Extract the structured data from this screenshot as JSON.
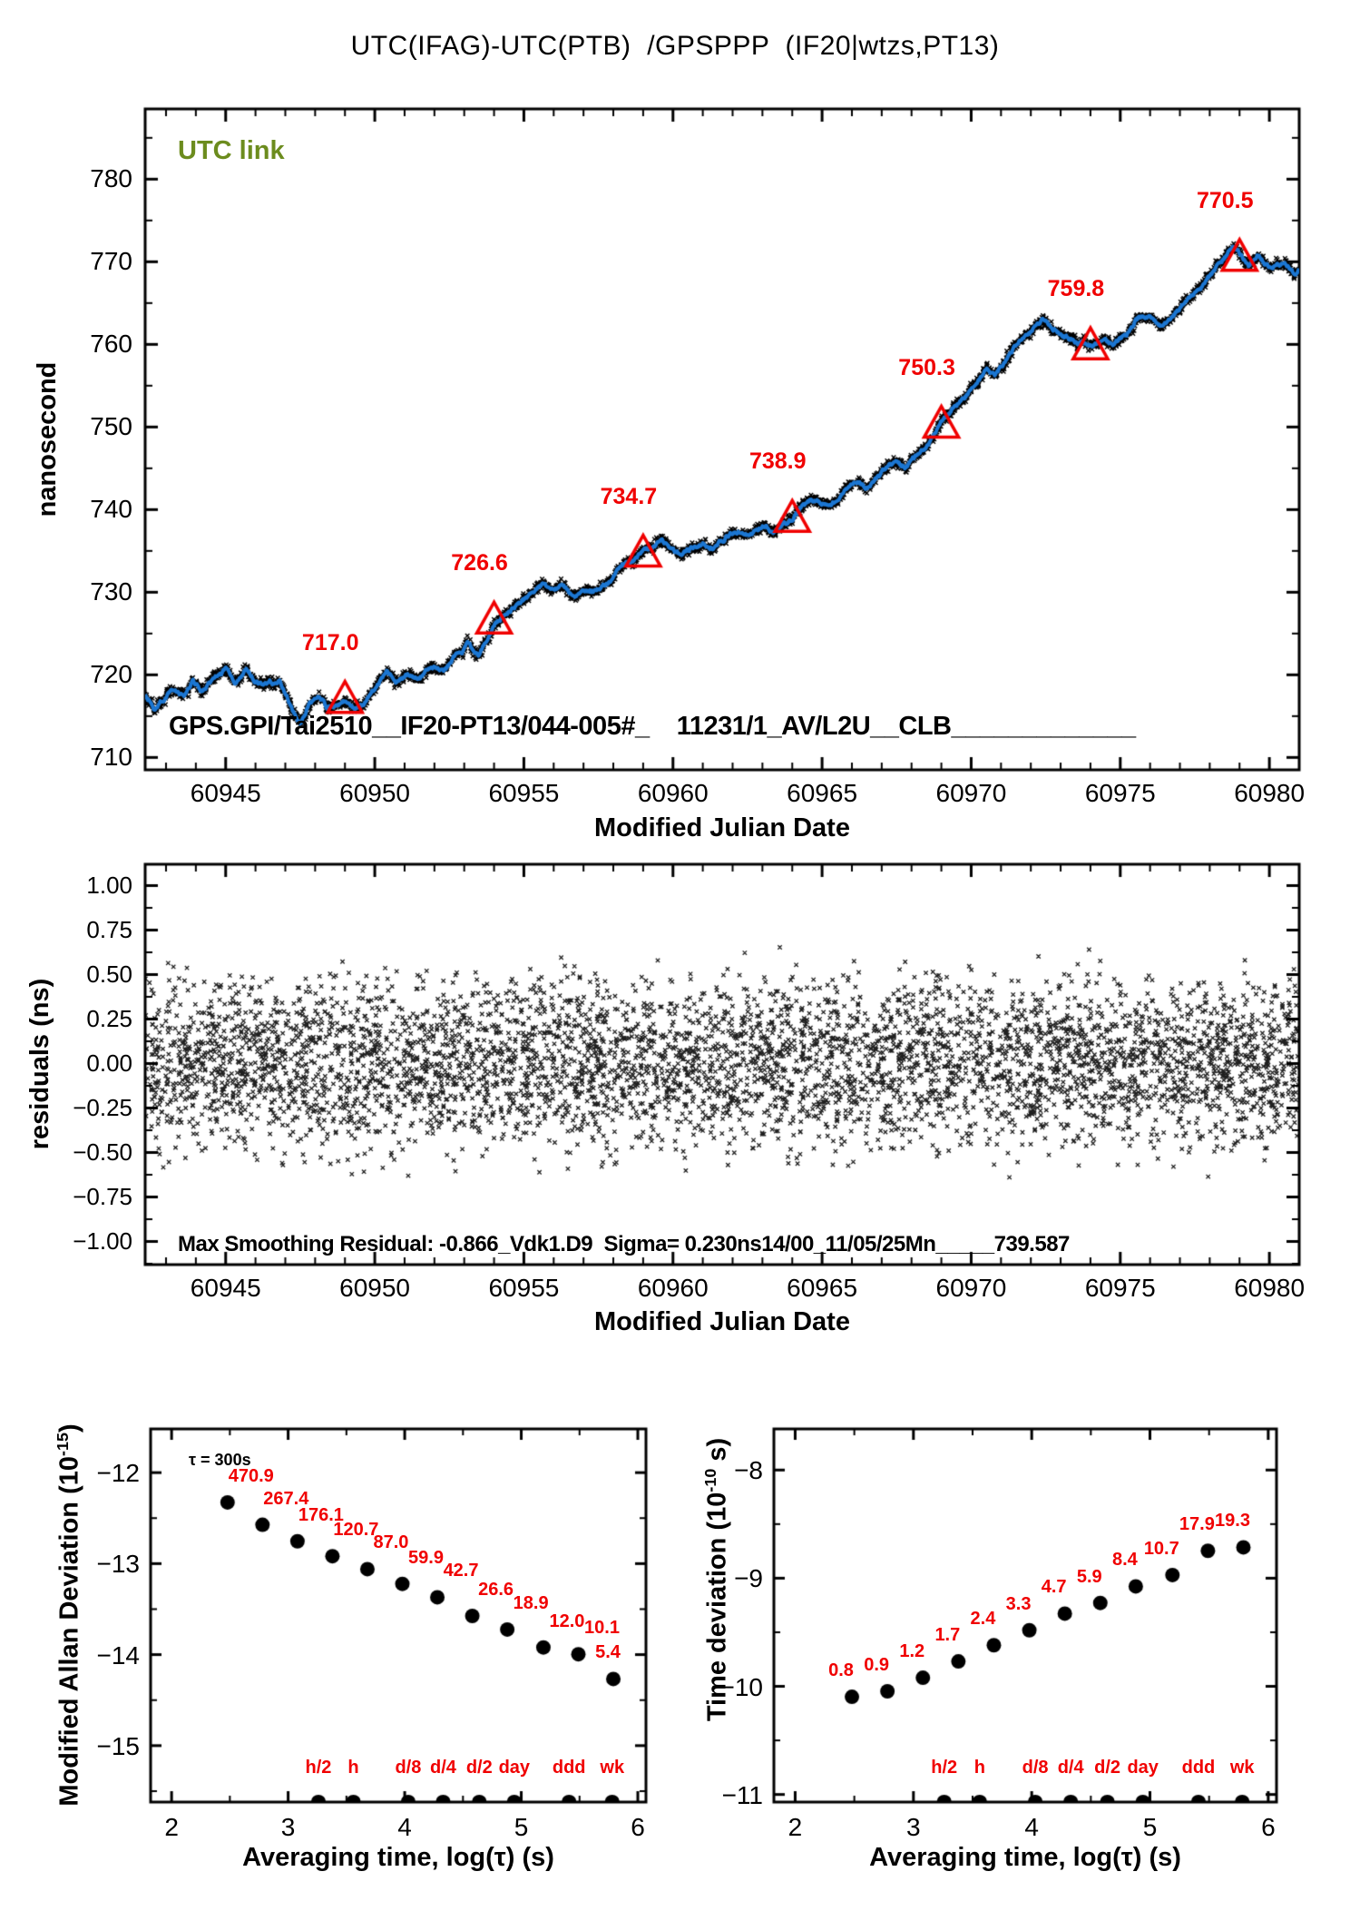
{
  "title": "UTC(IFAG)-UTC(PTB)  /GPSPPP  (IF20|wtzs,PT13)",
  "colors": {
    "ink": "#000000",
    "series_blue": "#1b76d2",
    "accent_red": "#f00000",
    "link_green": "#6c8c1e",
    "background": "#ffffff"
  },
  "chart_data": [
    {
      "type": "line",
      "title": "UTC(IFAG)-UTC(PTB)  /GPSPPP  (IF20|wtzs,PT13)",
      "xlabel": "Modified Julian Date",
      "ylabel": "nanosecond",
      "series_label": "UTC link",
      "annotation": "GPS.GPI/Tai2510__IF20-PT13/044-005#_    11231/1_AV/L2U__CLB_____________",
      "xlim": [
        60942.3,
        60981.0
      ],
      "ylim": [
        708.5,
        788.5
      ],
      "xticks": [
        60945,
        60950,
        60955,
        60960,
        60965,
        60970,
        60975,
        60980
      ],
      "xtick_labels": [
        "60945",
        "60950",
        "60955",
        "60960",
        "60965",
        "60970",
        "60975",
        "60980"
      ],
      "x_minor_step": 1,
      "yticks": [
        710,
        720,
        730,
        740,
        750,
        760,
        770,
        780
      ],
      "ytick_labels": [
        "710",
        "720",
        "730",
        "740",
        "750",
        "760",
        "770",
        "780"
      ],
      "y_minor_step": 5,
      "grid": false,
      "noise_sigma_ns": 0.28,
      "keypoints": [
        [
          60942.3,
          717.6
        ],
        [
          60942.6,
          715.9
        ],
        [
          60943.0,
          717.4
        ],
        [
          60943.3,
          718.4
        ],
        [
          60943.6,
          717.3
        ],
        [
          60943.9,
          719.4
        ],
        [
          60944.2,
          718.0
        ],
        [
          60944.6,
          719.9
        ],
        [
          60945.0,
          720.6
        ],
        [
          60945.3,
          719.1
        ],
        [
          60945.7,
          720.8
        ],
        [
          60946.0,
          719.2
        ],
        [
          60946.4,
          718.8
        ],
        [
          60946.8,
          719.3
        ],
        [
          60947.2,
          716.2
        ],
        [
          60947.5,
          713.9
        ],
        [
          60947.8,
          716.4
        ],
        [
          60948.1,
          717.4
        ],
        [
          60948.4,
          716.1
        ],
        [
          60948.8,
          716.3
        ],
        [
          60949.0,
          716.8
        ],
        [
          60949.3,
          715.9
        ],
        [
          60949.6,
          716.4
        ],
        [
          60950.0,
          718.1
        ],
        [
          60950.4,
          720.4
        ],
        [
          60950.7,
          719.1
        ],
        [
          60951.1,
          719.9
        ],
        [
          60951.5,
          719.4
        ],
        [
          60951.9,
          721.3
        ],
        [
          60952.3,
          720.1
        ],
        [
          60952.7,
          722.3
        ],
        [
          60953.1,
          723.6
        ],
        [
          60953.5,
          722.4
        ],
        [
          60953.8,
          724.6
        ],
        [
          60954.0,
          726.0
        ],
        [
          60954.4,
          727.6
        ],
        [
          60954.8,
          728.6
        ],
        [
          60955.2,
          729.6
        ],
        [
          60955.6,
          730.9
        ],
        [
          60955.9,
          730.1
        ],
        [
          60956.3,
          730.6
        ],
        [
          60956.7,
          729.6
        ],
        [
          60957.1,
          730.1
        ],
        [
          60957.5,
          730.4
        ],
        [
          60957.9,
          731.3
        ],
        [
          60958.3,
          733.4
        ],
        [
          60958.7,
          734.1
        ],
        [
          60959.0,
          734.9
        ],
        [
          60959.3,
          735.6
        ],
        [
          60959.6,
          736.6
        ],
        [
          60959.9,
          735.1
        ],
        [
          60960.2,
          734.6
        ],
        [
          60960.6,
          735.4
        ],
        [
          60961.0,
          736.1
        ],
        [
          60961.4,
          735.6
        ],
        [
          60961.8,
          736.6
        ],
        [
          60962.2,
          737.4
        ],
        [
          60962.6,
          737.0
        ],
        [
          60963.0,
          738.1
        ],
        [
          60963.4,
          737.1
        ],
        [
          60963.7,
          738.3
        ],
        [
          60964.0,
          739.0
        ],
        [
          60964.3,
          740.1
        ],
        [
          60964.6,
          741.1
        ],
        [
          60965.0,
          740.6
        ],
        [
          60965.4,
          741.1
        ],
        [
          60965.8,
          742.6
        ],
        [
          60966.2,
          743.6
        ],
        [
          60966.6,
          742.6
        ],
        [
          60967.0,
          744.4
        ],
        [
          60967.4,
          745.6
        ],
        [
          60967.8,
          745.1
        ],
        [
          60968.2,
          746.6
        ],
        [
          60968.6,
          748.1
        ],
        [
          60969.0,
          750.3
        ],
        [
          60969.4,
          752.4
        ],
        [
          60969.8,
          753.6
        ],
        [
          60970.2,
          755.4
        ],
        [
          60970.5,
          757.1
        ],
        [
          60970.8,
          756.1
        ],
        [
          60971.2,
          758.4
        ],
        [
          60971.6,
          760.4
        ],
        [
          60972.0,
          761.6
        ],
        [
          60972.4,
          762.9
        ],
        [
          60972.7,
          762.1
        ],
        [
          60973.1,
          761.1
        ],
        [
          60973.5,
          760.1
        ],
        [
          60974.0,
          759.8
        ],
        [
          60974.4,
          760.6
        ],
        [
          60974.8,
          760.1
        ],
        [
          60975.2,
          761.1
        ],
        [
          60975.6,
          763.4
        ],
        [
          60976.0,
          763.1
        ],
        [
          60976.4,
          762.1
        ],
        [
          60976.8,
          763.6
        ],
        [
          60977.2,
          765.4
        ],
        [
          60977.6,
          766.6
        ],
        [
          60978.0,
          768.1
        ],
        [
          60978.4,
          770.1
        ],
        [
          60978.8,
          771.9
        ],
        [
          60979.0,
          771.1
        ],
        [
          60979.3,
          769.6
        ],
        [
          60979.6,
          770.9
        ],
        [
          60980.0,
          769.1
        ],
        [
          60980.4,
          769.9
        ],
        [
          60980.8,
          768.6
        ],
        [
          60981.0,
          769.1
        ]
      ],
      "daily_markers": {
        "shape": "open-triangle",
        "color": "#f00000",
        "mjd": [
          60949,
          60954,
          60959,
          60964,
          60969,
          60974,
          60979
        ],
        "values": [
          717.0,
          726.6,
          734.7,
          738.9,
          750.3,
          759.8,
          770.5
        ],
        "labels": [
          "717.0",
          "726.6",
          "734.7",
          "738.9",
          "750.3",
          "759.8",
          "770.5"
        ]
      }
    },
    {
      "type": "scatter",
      "marker": "x",
      "xlabel": "Modified Julian Date",
      "ylabel": "residuals (ns)",
      "annotation": "Max Smoothing Residual: -0.866_Vdk1.D9  Sigma= 0.230ns14/00_11/05/25Mn_____739.587",
      "xlim": [
        60942.3,
        60981.0
      ],
      "ylim": [
        -1.13,
        1.12
      ],
      "xticks": [
        60945,
        60950,
        60955,
        60960,
        60965,
        60970,
        60975,
        60980
      ],
      "xtick_labels": [
        "60945",
        "60950",
        "60955",
        "60960",
        "60965",
        "60970",
        "60975",
        "60980"
      ],
      "x_minor_step": 1,
      "yticks": [
        -1.0,
        -0.75,
        -0.5,
        -0.25,
        0.0,
        0.25,
        0.5,
        0.75,
        1.0
      ],
      "ytick_labels": [
        "−1.00",
        "−0.75",
        "−0.50",
        "−0.25",
        "0.00",
        "0.25",
        "0.50",
        "0.75",
        "1.00"
      ],
      "y_minor_step": 0.125,
      "sigma_ns": 0.23,
      "n_points": 5200
    },
    {
      "type": "scatter",
      "marker": "dot",
      "xlabel": "Averaging time, log(τ) (s)",
      "ylabel_parts": {
        "pre": "Modified Allan Deviation (10",
        "sup": "-15",
        "post": ")"
      },
      "tau_note": "τ = 300s",
      "xlim": [
        1.82,
        6.07
      ],
      "ylim": [
        -15.62,
        -11.52
      ],
      "xticks": [
        2,
        3,
        4,
        5,
        6
      ],
      "xtick_labels": [
        "2",
        "3",
        "4",
        "5",
        "6"
      ],
      "x_minor_step": 0.5,
      "yticks": [
        -15,
        -14,
        -13,
        -12
      ],
      "ytick_labels": [
        "−15",
        "−14",
        "−13",
        "−12"
      ],
      "y_minor_step": 0.5,
      "exponent": -15,
      "x": [
        2.48,
        2.78,
        3.08,
        3.38,
        3.68,
        3.98,
        4.28,
        4.58,
        4.88,
        5.19,
        5.49,
        5.79
      ],
      "values": [
        470.9,
        267.4,
        176.1,
        120.7,
        87.0,
        59.9,
        42.7,
        26.6,
        18.9,
        12.0,
        10.1,
        5.4
      ],
      "value_labels": [
        "470.9",
        "267.4",
        "176.1",
        "120.7",
        "87.0",
        "59.9",
        "42.7",
        "26.6",
        "18.9",
        "12.0",
        "10.1",
        "5.4"
      ],
      "time_markers": {
        "labels": [
          "h/2",
          "h",
          "d/8",
          "d/4",
          "d/2",
          "day",
          "ddd",
          "wk"
        ],
        "log_tau": [
          3.26,
          3.56,
          4.03,
          4.33,
          4.64,
          4.94,
          5.41,
          5.78
        ]
      }
    },
    {
      "type": "scatter",
      "marker": "dot",
      "xlabel": "Averaging time, log(τ) (s)",
      "ylabel_parts": {
        "pre": "Time deviation (10",
        "sup": "-10",
        "post": " s)"
      },
      "xlim": [
        1.82,
        6.07
      ],
      "ylim": [
        -11.07,
        -7.62
      ],
      "xticks": [
        2,
        3,
        4,
        5,
        6
      ],
      "xtick_labels": [
        "2",
        "3",
        "4",
        "5",
        "6"
      ],
      "x_minor_step": 0.5,
      "yticks": [
        -11,
        -10,
        -9,
        -8
      ],
      "ytick_labels": [
        "−11",
        "−10",
        "−9",
        "−8"
      ],
      "y_minor_step": 0.5,
      "exponent": -10,
      "x": [
        2.48,
        2.78,
        3.08,
        3.38,
        3.68,
        3.98,
        4.28,
        4.58,
        4.88,
        5.19,
        5.49,
        5.79
      ],
      "values": [
        0.8,
        0.9,
        1.2,
        1.7,
        2.4,
        3.3,
        4.7,
        5.9,
        8.4,
        10.7,
        17.9,
        19.3
      ],
      "value_labels": [
        "0.8",
        "0.9",
        "1.2",
        "1.7",
        "2.4",
        "3.3",
        "4.7",
        "5.9",
        "8.4",
        "10.7",
        "17.9",
        "19.3"
      ],
      "time_markers": {
        "labels": [
          "h/2",
          "h",
          "d/8",
          "d/4",
          "d/2",
          "day",
          "ddd",
          "wk"
        ],
        "log_tau": [
          3.26,
          3.56,
          4.03,
          4.33,
          4.64,
          4.94,
          5.41,
          5.78
        ]
      }
    }
  ]
}
